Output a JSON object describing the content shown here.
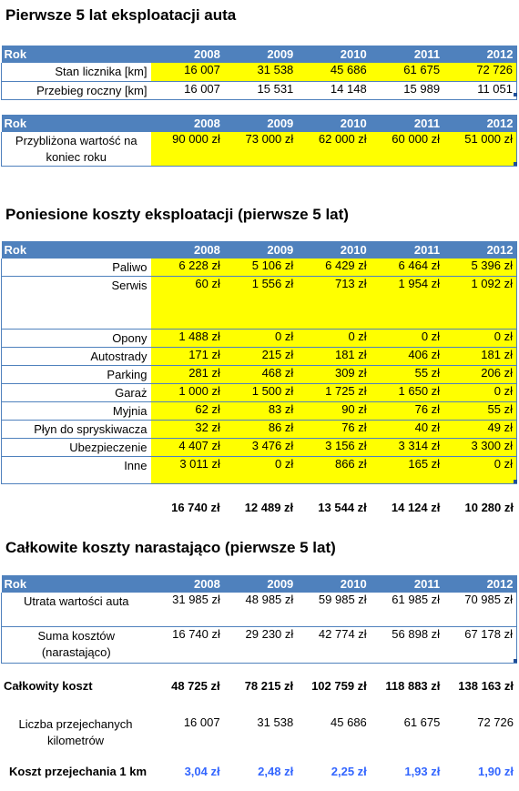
{
  "years": [
    "2008",
    "2009",
    "2010",
    "2011",
    "2012"
  ],
  "header_label": "Rok",
  "section1": {
    "title": "Pierwsze 5 lat eksploatacji auta",
    "rows": [
      {
        "label": "Stan licznika [km]",
        "values": [
          "16 007",
          "31 538",
          "45 686",
          "61 675",
          "72 726"
        ]
      },
      {
        "label": "Przebieg roczny [km]",
        "values": [
          "16 007",
          "15 531",
          "14 148",
          "15 989",
          "11 051"
        ]
      }
    ],
    "value_row": {
      "label": "Przybliżona wartość na koniec roku",
      "values": [
        "90 000 zł",
        "73 000 zł",
        "62 000 zł",
        "60 000 zł",
        "51 000 zł"
      ]
    }
  },
  "section2": {
    "title": "Poniesione koszty eksploatacji (pierwsze 5 lat)",
    "rows": [
      {
        "label": "Paliwo",
        "values": [
          "6 228 zł",
          "5 106 zł",
          "6 429 zł",
          "6 464 zł",
          "5 396 zł"
        ]
      },
      {
        "label": "Serwis",
        "values": [
          "60 zł",
          "1 556 zł",
          "713 zł",
          "1 954 zł",
          "1 092 zł"
        ]
      },
      {
        "label": "Opony",
        "values": [
          "1 488 zł",
          "0 zł",
          "0 zł",
          "0 zł",
          "0 zł"
        ]
      },
      {
        "label": "Autostrady",
        "values": [
          "171 zł",
          "215 zł",
          "181 zł",
          "406 zł",
          "181 zł"
        ]
      },
      {
        "label": "Parking",
        "values": [
          "281 zł",
          "468 zł",
          "309 zł",
          "55 zł",
          "206 zł"
        ]
      },
      {
        "label": "Garaż",
        "values": [
          "1 000 zł",
          "1 500 zł",
          "1 725 zł",
          "1 650 zł",
          "0 zł"
        ]
      },
      {
        "label": "Myjnia",
        "values": [
          "62 zł",
          "83 zł",
          "90 zł",
          "76 zł",
          "55 zł"
        ]
      },
      {
        "label": "Płyn do spryskiwacza",
        "values": [
          "32 zł",
          "86 zł",
          "76 zł",
          "40 zł",
          "49 zł"
        ]
      },
      {
        "label": "Ubezpieczenie",
        "values": [
          "4 407 zł",
          "3 476 zł",
          "3 156 zł",
          "3 314 zł",
          "3 300 zł"
        ]
      },
      {
        "label": "Inne",
        "values": [
          "3 011 zł",
          "0 zł",
          "866 zł",
          "165 zł",
          "0 zł"
        ]
      }
    ],
    "totals": [
      "16 740 zł",
      "12 489 zł",
      "13 544 zł",
      "14 124 zł",
      "10 280 zł"
    ]
  },
  "section3": {
    "title": "Całkowite koszty narastająco (pierwsze 5 lat)",
    "rows": [
      {
        "label": "Utrata wartości auta",
        "values": [
          "31 985 zł",
          "48 985 zł",
          "59 985 zł",
          "61 985 zł",
          "70 985 zł"
        ]
      },
      {
        "label": "Suma kosztów (narastająco)",
        "values": [
          "16 740 zł",
          "29 230 zł",
          "42 774 zł",
          "56 898 zł",
          "67 178 zł"
        ]
      }
    ],
    "total_cost": {
      "label": "Całkowity koszt",
      "values": [
        "48 725 zł",
        "78 215 zł",
        "102 759 zł",
        "118 883 zł",
        "138 163 zł"
      ]
    },
    "km": {
      "label": "Liczba przejechanych kilometrów",
      "values": [
        "16 007",
        "31 538",
        "45 686",
        "61 675",
        "72 726"
      ]
    },
    "cost_per_km": {
      "label": "Koszt przejechania 1 km",
      "values": [
        "3,04 zł",
        "2,48 zł",
        "2,25 zł",
        "1,93 zł",
        "1,90 zł"
      ]
    }
  }
}
